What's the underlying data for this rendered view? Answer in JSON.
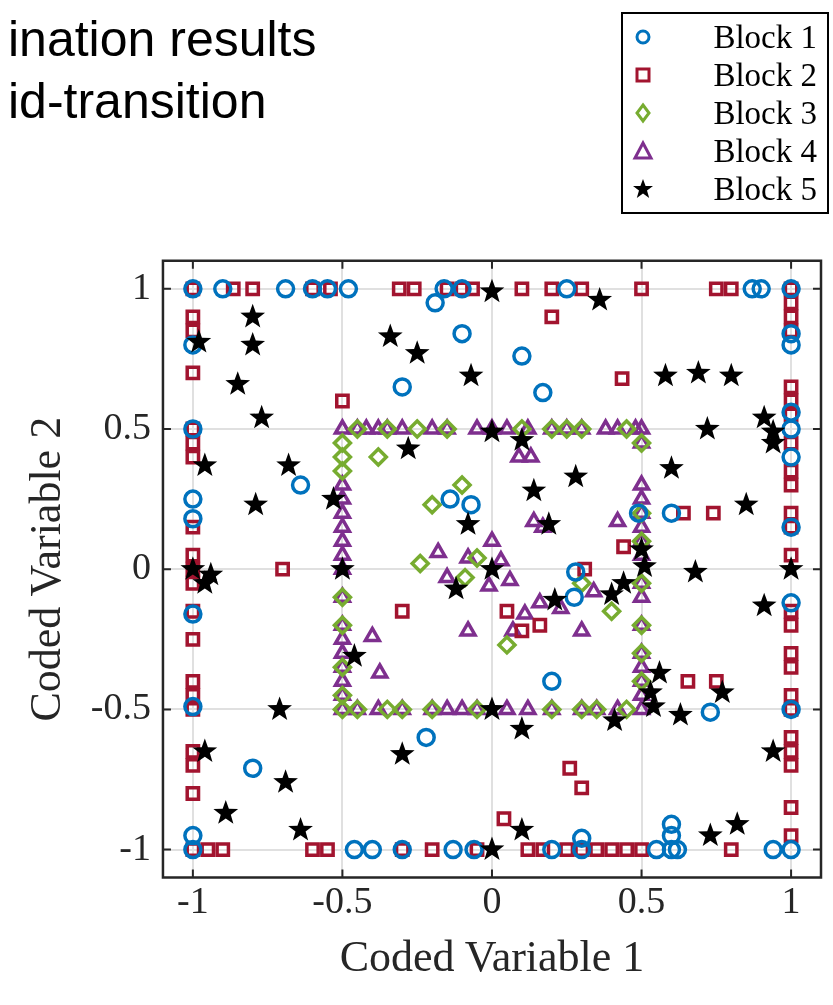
{
  "chart_data": {
    "type": "scatter",
    "title": "ination results",
    "subtitle": "id-transition",
    "xlabel": "Coded Variable 1",
    "ylabel": "Coded Variable 2",
    "xlim": [
      -1.1,
      1.1
    ],
    "ylim": [
      -1.1,
      1.1
    ],
    "xticks": [
      -1,
      -0.5,
      0,
      0.5,
      1
    ],
    "yticks": [
      -1,
      -0.5,
      0,
      0.5,
      1
    ],
    "grid": true,
    "legend": "top right",
    "series": [
      {
        "name": "Block 1",
        "color": "#0072bd",
        "marker": "circle",
        "x": [
          -1,
          -0.9,
          -0.69,
          -0.6,
          -0.55,
          -0.48,
          -0.16,
          -0.1,
          0.25,
          0.87,
          0.9,
          -0.19,
          -0.1,
          -0.3,
          0.1,
          0.17,
          -0.64,
          -0.14,
          -0.07,
          0.49,
          0.6,
          0.28,
          0.275,
          0.2,
          -0.22,
          -0.8,
          0.73,
          -1,
          -1,
          -1,
          -1,
          -1,
          -1,
          -1,
          -1,
          -0.46,
          -0.4,
          -0.3,
          -0.13,
          -0.06,
          0.2,
          0.3,
          0.55,
          0.6,
          0.62,
          0.94,
          1,
          0.3,
          0.6,
          0.6,
          1,
          1,
          1,
          1,
          1,
          1,
          1,
          1,
          1
        ],
        "values": [
          1,
          1,
          1,
          1,
          1,
          1,
          1,
          1,
          1,
          1,
          1,
          0.95,
          0.84,
          0.65,
          0.76,
          0.63,
          0.3,
          0.25,
          0.23,
          0.2,
          0.2,
          -0.01,
          -0.1,
          -0.4,
          -0.6,
          -0.71,
          -0.51,
          0.8,
          0.5,
          0.25,
          0.18,
          -0.16,
          -0.49,
          -0.95,
          -1,
          -1,
          -1,
          -1,
          -1,
          -1,
          -1,
          -1,
          -1,
          -1,
          -1,
          -1,
          -1,
          -0.96,
          -0.91,
          -0.95,
          1,
          0.84,
          0.8,
          0.56,
          0.5,
          0.4,
          0.15,
          -0.12,
          -0.5
        ]
      },
      {
        "name": "Block 2",
        "color": "#a2142f",
        "marker": "square",
        "x": [
          -1,
          -0.865,
          -0.8,
          -0.6,
          -0.54,
          -0.31,
          -0.26,
          -0.15,
          -0.1,
          -0.065,
          0.1,
          0.2,
          0.3,
          0.5,
          0.75,
          0.8,
          1,
          0.2,
          0.435,
          -0.5,
          -0.7,
          -0.3,
          0.05,
          0.1,
          0.16,
          0.31,
          0.44,
          0.64,
          0.74,
          0.655,
          0.75,
          0.26,
          0.3,
          0.04,
          -1,
          -1,
          -1,
          -1,
          -1,
          -1,
          -1,
          -1,
          -1,
          -1,
          -1,
          -1,
          -1,
          -1,
          -1,
          -1,
          -1,
          -1,
          -1,
          -0.95,
          -0.9,
          -0.6,
          -0.55,
          -0.3,
          -0.2,
          -0.05,
          0.12,
          0.17,
          0.25,
          0.3,
          0.35,
          0.4,
          0.45,
          0.5,
          0.8,
          1,
          1,
          1,
          1,
          1,
          1,
          1,
          1,
          1,
          1,
          1,
          1,
          1,
          1,
          1,
          1,
          1,
          1,
          1,
          1,
          1,
          1,
          1
        ],
        "values": [
          1,
          1,
          1,
          1,
          1,
          1,
          1,
          1,
          1,
          1,
          1,
          1,
          1,
          1,
          1,
          1,
          1,
          0.9,
          0.68,
          0.6,
          0,
          -0.15,
          -0.15,
          -0.22,
          -0.2,
          0,
          0.08,
          0.2,
          0.2,
          -0.4,
          -0.4,
          -0.71,
          -0.78,
          -0.89,
          0.9,
          0.85,
          0.7,
          0.5,
          0.45,
          0.4,
          0.15,
          0.05,
          0,
          -0.05,
          -0.15,
          -0.25,
          -0.4,
          -0.45,
          -0.5,
          -0.65,
          -0.7,
          -0.8,
          -1,
          -1,
          -1,
          -1,
          -1,
          -1,
          -1,
          -1,
          -1,
          -1,
          -1,
          -1,
          -1,
          -1,
          -1,
          -1,
          -1,
          0.95,
          0.9,
          0.85,
          0.65,
          0.6,
          0.55,
          0.45,
          0.35,
          0.3,
          0.2,
          0.15,
          0.05,
          -0.15,
          -0.2,
          -0.3,
          -0.35,
          -0.45,
          -0.5,
          -0.6,
          -0.65,
          -0.7,
          -0.85,
          -0.95
        ]
      },
      {
        "name": "Block 3",
        "color": "#77ac30",
        "marker": "diamond",
        "x": [
          -0.38,
          -0.1,
          -0.2,
          -0.24,
          -0.05,
          -0.09,
          0.05,
          0.3,
          0.4,
          -0.45,
          -0.35,
          -0.25,
          -0.15,
          0.1,
          0.2,
          0.25,
          0.3,
          0.45,
          -0.5,
          -0.5,
          -0.5,
          -0.5,
          -0.5,
          -0.5,
          -0.5,
          -0.5,
          -0.45,
          -0.35,
          -0.3,
          -0.2,
          -0.05,
          0.2,
          0.3,
          0.35,
          0.45,
          0.5,
          0.5,
          0.5,
          0.5,
          0.5,
          0.5,
          0.5
        ],
        "values": [
          0.4,
          0.3,
          0.23,
          0.02,
          0.04,
          -0.03,
          -0.27,
          -0.05,
          -0.15,
          0.5,
          0.5,
          0.5,
          0.5,
          0.5,
          0.5,
          0.5,
          0.5,
          0.5,
          0.45,
          0.4,
          0.35,
          -0.1,
          -0.2,
          -0.35,
          -0.45,
          -0.5,
          -0.5,
          -0.5,
          -0.5,
          -0.5,
          -0.5,
          -0.5,
          -0.5,
          -0.5,
          -0.5,
          0.45,
          0.2,
          0.1,
          -0.05,
          -0.2,
          -0.3,
          -0.4
        ]
      },
      {
        "name": "Block 4",
        "color": "#7e2f8e",
        "marker": "triangle",
        "x": [
          -0.5,
          -0.45,
          -0.42,
          -0.38,
          -0.35,
          -0.3,
          -0.2,
          -0.15,
          -0.05,
          0,
          0.05,
          0.12,
          0.2,
          0.25,
          0.3,
          0.38,
          0.42,
          0.48,
          0.5,
          -0.5,
          -0.5,
          -0.5,
          -0.5,
          -0.5,
          -0.5,
          -0.5,
          -0.5,
          -0.5,
          -0.5,
          -0.5,
          -0.5,
          -0.5,
          -0.5,
          -0.5,
          -0.45,
          -0.38,
          -0.3,
          -0.2,
          -0.15,
          -0.1,
          -0.05,
          0.05,
          0.12,
          0.2,
          0.3,
          0.35,
          0.42,
          0.5,
          0.5,
          0.5,
          0.5,
          0.5,
          0.5,
          0.5,
          0.5,
          0.5,
          0.5,
          0.5,
          0.5,
          0.5,
          0.5,
          0.5,
          0.09,
          0.13,
          0.14,
          0.17,
          0,
          -0.08,
          0.03,
          -0.01,
          0.06,
          -0.18,
          -0.15,
          0.16,
          0.11,
          0.23,
          0.3,
          0.07,
          -0.08,
          -0.4,
          -0.375,
          0.34,
          0.42
        ],
        "values": [
          0.5,
          0.5,
          0.5,
          0.5,
          0.5,
          0.5,
          0.5,
          0.5,
          0.5,
          0.5,
          0.5,
          0.5,
          0.5,
          0.5,
          0.5,
          0.5,
          0.5,
          0.5,
          0.5,
          0.3,
          0.25,
          0.2,
          0.15,
          0.1,
          0.05,
          0,
          -0.1,
          -0.2,
          -0.25,
          -0.3,
          -0.35,
          -0.4,
          -0.45,
          -0.5,
          -0.5,
          -0.5,
          -0.5,
          -0.5,
          -0.5,
          -0.5,
          -0.5,
          -0.5,
          -0.5,
          -0.5,
          -0.5,
          -0.5,
          -0.5,
          -0.5,
          0.45,
          0.3,
          0.25,
          0.2,
          0.15,
          0.1,
          0.05,
          -0.05,
          -0.1,
          -0.2,
          -0.3,
          -0.35,
          -0.4,
          -0.45,
          0.4,
          0.4,
          0.17,
          0.15,
          0.1,
          0.04,
          0.03,
          -0.06,
          -0.04,
          0.06,
          -0.03,
          -0.12,
          -0.16,
          -0.14,
          -0.22,
          -0.22,
          -0.22,
          -0.24,
          -0.37,
          -0.08,
          0.17
        ]
      },
      {
        "name": "Block 5",
        "color": "#000000",
        "marker": "star",
        "x": [
          0,
          0.36,
          -0.8,
          -0.98,
          -0.8,
          -0.34,
          -0.25,
          -0.85,
          -0.77,
          -0.07,
          0.58,
          0.69,
          0.8,
          -0.96,
          -0.68,
          -0.79,
          -0.53,
          -0.28,
          0,
          0.1,
          0.14,
          0.19,
          -0.08,
          0.28,
          0.72,
          0.6,
          0.85,
          0.91,
          0.94,
          0.94,
          0.68,
          1,
          -1,
          -0.94,
          -0.96,
          -0.5,
          0,
          -0.12,
          0.21,
          0.4,
          0.44,
          0.51,
          0.91,
          -0.46,
          0.56,
          0.53,
          0.54,
          0.77,
          0.63,
          0.41,
          0.1,
          0,
          -0.71,
          -0.96,
          -0.3,
          -0.69,
          -0.89,
          -0.64,
          0,
          0.1,
          0.73,
          0.82,
          0.94,
          0.5
        ],
        "values": [
          0.99,
          0.96,
          0.9,
          0.81,
          0.8,
          0.83,
          0.77,
          0.66,
          0.54,
          0.69,
          0.69,
          0.7,
          0.69,
          0.37,
          0.37,
          0.23,
          0.25,
          0.43,
          0.49,
          0.46,
          0.28,
          0.16,
          0.16,
          0.33,
          0.5,
          0.36,
          0.23,
          0.54,
          0.49,
          0.45,
          -0.01,
          0,
          0,
          -0.02,
          -0.05,
          0,
          0,
          -0.07,
          -0.11,
          -0.09,
          -0.05,
          0.01,
          -0.13,
          -0.31,
          -0.37,
          -0.44,
          -0.49,
          -0.44,
          -0.52,
          -0.54,
          -0.57,
          -0.5,
          -0.5,
          -0.65,
          -0.66,
          -0.76,
          -0.87,
          -0.93,
          -1,
          -0.93,
          -0.95,
          -0.91,
          -0.65,
          0.07
        ]
      }
    ]
  }
}
